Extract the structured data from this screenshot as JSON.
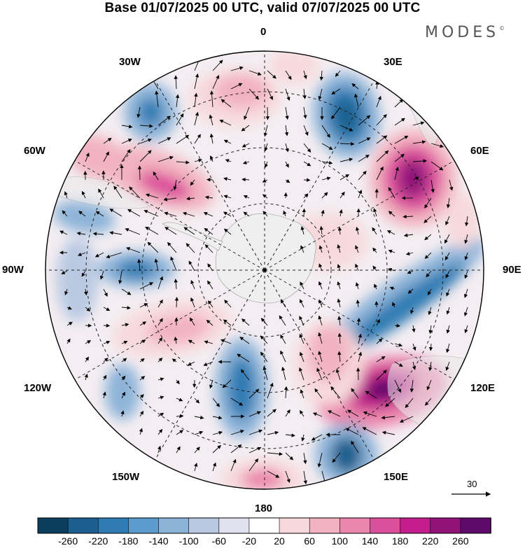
{
  "title": "Base 01/07/2025 00 UTC, valid 07/07/2025 00 UTC",
  "brand": {
    "name": "MODES",
    "mark": "©"
  },
  "map": {
    "projection": "south polar stereographic",
    "meridian_labels": [
      "0",
      "30E",
      "60E",
      "90E",
      "120E",
      "150E",
      "180",
      "150W",
      "120W",
      "90W",
      "60W",
      "30W"
    ],
    "anomalies": [
      {
        "sign": "positive",
        "peak": 260,
        "region": "Southern Indian Ocean near 50E"
      },
      {
        "sign": "positive",
        "peak": 260,
        "region": "South of Australia near 125E"
      },
      {
        "sign": "negative",
        "peak": -200,
        "region": "South Atlantic near 20E"
      },
      {
        "sign": "negative",
        "peak": -180,
        "region": "Band from 90E to 110E"
      },
      {
        "sign": "negative",
        "peak": -160,
        "region": "Ross Sea region near 165E"
      },
      {
        "sign": "negative",
        "peak": -140,
        "region": "Amundsen Sea near 150E"
      },
      {
        "sign": "positive",
        "peak": 180,
        "region": "South Pacific near 60W"
      },
      {
        "sign": "negative",
        "peak": -140,
        "region": "Southeast Pacific near 90W"
      }
    ]
  },
  "wind_reference": {
    "value": "30"
  },
  "colorbar": {
    "colors": [
      "#0b3d5c",
      "#1a5f8e",
      "#2f7bb3",
      "#5b9ccc",
      "#8db4d8",
      "#b9c9e2",
      "#e2e2ee",
      "#ffffff",
      "#f7d9dc",
      "#f2b2c0",
      "#ea86ac",
      "#dc4f9b",
      "#c41e8c",
      "#93127a",
      "#5e0a6a"
    ],
    "tick_labels": [
      "-260",
      "-220",
      "-180",
      "-140",
      "-100",
      "-60",
      "-20",
      "20",
      "60",
      "100",
      "140",
      "180",
      "220",
      "260"
    ]
  }
}
